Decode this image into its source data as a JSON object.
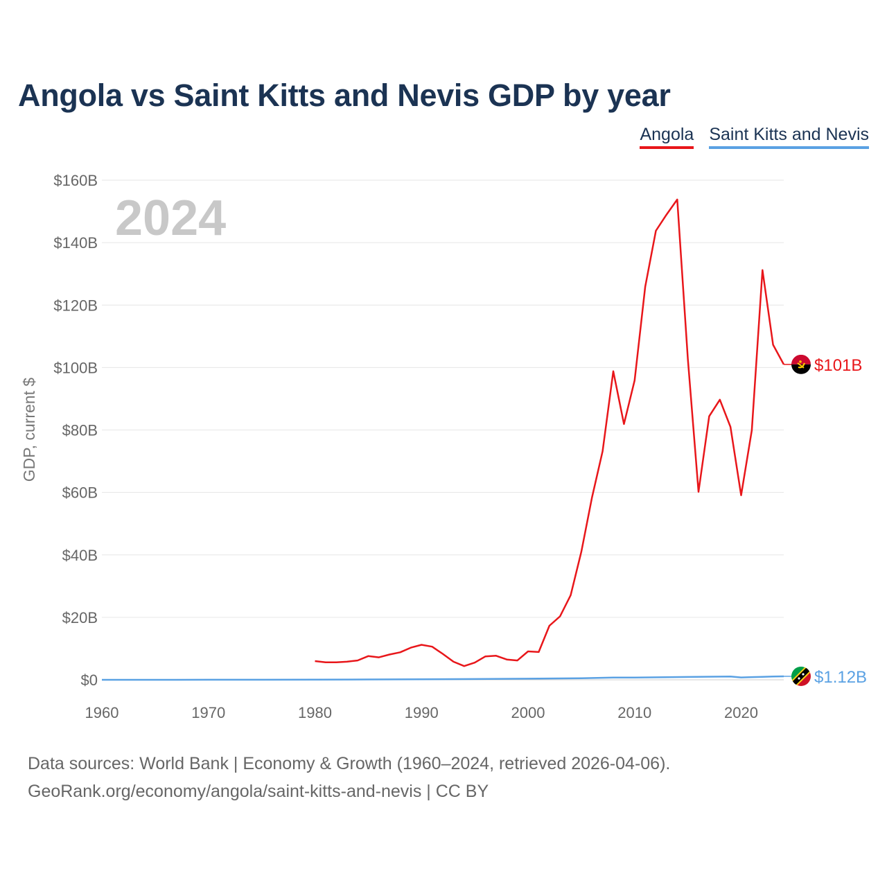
{
  "title": "Angola vs Saint Kitts and Nevis GDP by year",
  "legend": [
    {
      "name": "Angola",
      "color": "#e8161a"
    },
    {
      "name": "Saint Kitts and Nevis",
      "color": "#5aa1e3"
    }
  ],
  "source": {
    "line1": "Data sources: World Bank | Economy & Growth (1960–2024, retrieved 2026-04-06).",
    "line2": "GeoRank.org/economy/angola/saint-kitts-and-nevis | CC BY"
  },
  "chart_data": {
    "type": "line",
    "title": "Angola vs Saint Kitts and Nevis GDP by year",
    "xlabel": "",
    "ylabel": "GDP, current $",
    "year_display": "2024",
    "xlim": [
      1960,
      2024
    ],
    "ylim": [
      0,
      160
    ],
    "y_unit": "billion USD",
    "x_ticks": [
      1960,
      1970,
      1980,
      1990,
      2000,
      2010,
      2020
    ],
    "y_ticks": [
      {
        "value": 0,
        "label": "$0"
      },
      {
        "value": 20,
        "label": "$20B"
      },
      {
        "value": 40,
        "label": "$40B"
      },
      {
        "value": 60,
        "label": "$60B"
      },
      {
        "value": 80,
        "label": "$80B"
      },
      {
        "value": 100,
        "label": "$100B"
      },
      {
        "value": 120,
        "label": "$120B"
      },
      {
        "value": 140,
        "label": "$140B"
      },
      {
        "value": 160,
        "label": "$160B"
      }
    ],
    "grid": true,
    "series": [
      {
        "name": "Angola",
        "color": "#e8161a",
        "end_label": "$101B",
        "end_value": 101,
        "flag_icon": "angola-flag-icon",
        "x": [
          1980,
          1981,
          1982,
          1983,
          1984,
          1985,
          1986,
          1987,
          1988,
          1989,
          1990,
          1991,
          1992,
          1993,
          1994,
          1995,
          1996,
          1997,
          1998,
          1999,
          2000,
          2001,
          2002,
          2003,
          2004,
          2005,
          2006,
          2007,
          2008,
          2009,
          2010,
          2011,
          2012,
          2013,
          2014,
          2015,
          2016,
          2017,
          2018,
          2019,
          2020,
          2021,
          2022,
          2023,
          2024
        ],
        "values": [
          6.0,
          5.6,
          5.6,
          5.8,
          6.2,
          7.6,
          7.2,
          8.1,
          8.8,
          10.3,
          11.2,
          10.6,
          8.3,
          5.8,
          4.4,
          5.5,
          7.5,
          7.7,
          6.5,
          6.2,
          9.1,
          8.9,
          17.3,
          20.3,
          27.1,
          41.0,
          58.4,
          73.2,
          98.8,
          81.9,
          95.9,
          125.9,
          143.8,
          149.0,
          153.8,
          102.8,
          60.2,
          84.4,
          89.7,
          81.0,
          59.1,
          79.9,
          131.2,
          107.3,
          101.0
        ]
      },
      {
        "name": "Saint Kitts and Nevis",
        "color": "#5aa1e3",
        "end_label": "$1.12B",
        "end_value": 1.12,
        "flag_icon": "saint-kitts-and-nevis-flag-icon",
        "x": [
          1960,
          1965,
          1970,
          1975,
          1980,
          1985,
          1990,
          1995,
          2000,
          2005,
          2008,
          2010,
          2015,
          2019,
          2020,
          2021,
          2022,
          2023,
          2024
        ],
        "values": [
          0.01,
          0.01,
          0.02,
          0.03,
          0.05,
          0.1,
          0.16,
          0.24,
          0.35,
          0.5,
          0.7,
          0.72,
          0.92,
          1.05,
          0.75,
          0.86,
          0.95,
          1.05,
          1.12
        ]
      }
    ]
  }
}
